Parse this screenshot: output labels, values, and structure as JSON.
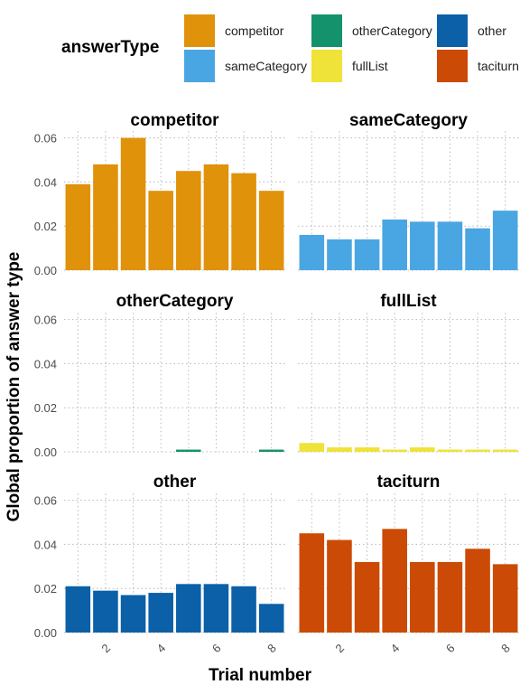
{
  "legend": {
    "title": "answerType",
    "items": [
      {
        "label": "competitor",
        "color": "#E0920A"
      },
      {
        "label": "sameCategory",
        "color": "#4AA6E2"
      },
      {
        "label": "otherCategory",
        "color": "#14926B"
      },
      {
        "label": "fullList",
        "color": "#EFE238"
      },
      {
        "label": "other",
        "color": "#0B60A8"
      },
      {
        "label": "taciturn",
        "color": "#CB4B06"
      }
    ]
  },
  "chart_data": {
    "type": "bar",
    "xlabel": "Trial number",
    "ylabel": "Global proportion of answer type",
    "x": [
      1,
      2,
      3,
      4,
      5,
      6,
      7,
      8
    ],
    "xticks": [
      "2",
      "4",
      "6",
      "8"
    ],
    "yticks": [
      "0.00",
      "0.02",
      "0.04",
      "0.06"
    ],
    "ylim": [
      0,
      0.063
    ],
    "grid": true,
    "legend_position": "top",
    "facets": [
      {
        "name": "competitor",
        "color": "#E0920A",
        "values": [
          0.039,
          0.048,
          0.06,
          0.036,
          0.045,
          0.048,
          0.044,
          0.036
        ]
      },
      {
        "name": "sameCategory",
        "color": "#4AA6E2",
        "values": [
          0.016,
          0.014,
          0.014,
          0.023,
          0.022,
          0.022,
          0.019,
          0.027
        ]
      },
      {
        "name": "otherCategory",
        "color": "#14926B",
        "values": [
          0,
          0,
          0,
          0,
          0.001,
          0,
          0,
          0.001
        ]
      },
      {
        "name": "fullList",
        "color": "#EFE238",
        "values": [
          0.004,
          0.002,
          0.002,
          0.001,
          0.002,
          0.001,
          0.001,
          0.001
        ]
      },
      {
        "name": "other",
        "color": "#0B60A8",
        "values": [
          0.021,
          0.019,
          0.017,
          0.018,
          0.022,
          0.022,
          0.021,
          0.013
        ]
      },
      {
        "name": "taciturn",
        "color": "#CB4B06",
        "values": [
          0.045,
          0.042,
          0.032,
          0.047,
          0.032,
          0.032,
          0.038,
          0.031
        ]
      }
    ]
  }
}
